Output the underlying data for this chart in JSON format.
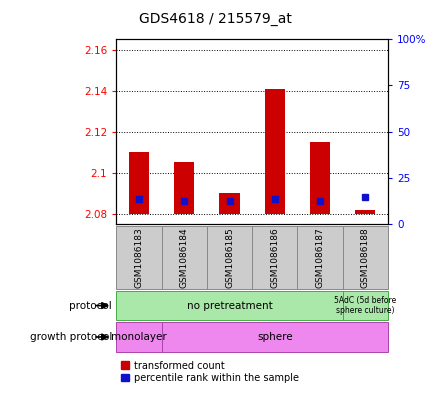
{
  "title": "GDS4618 / 215579_at",
  "samples": [
    "GSM1086183",
    "GSM1086184",
    "GSM1086185",
    "GSM1086186",
    "GSM1086187",
    "GSM1086188"
  ],
  "baseline": 2.08,
  "red_tops": [
    2.11,
    2.105,
    2.09,
    2.141,
    2.115,
    2.082
  ],
  "blue_y": [
    2.087,
    2.086,
    2.086,
    2.087,
    2.086,
    2.088
  ],
  "ylim_left": [
    2.075,
    2.165
  ],
  "ylim_right": [
    0,
    100
  ],
  "yticks_left": [
    2.08,
    2.1,
    2.12,
    2.14,
    2.16
  ],
  "ytick_labels_left": [
    "2.08",
    "2.1",
    "2.12",
    "2.14",
    "2.16"
  ],
  "yticks_right": [
    0,
    25,
    50,
    75,
    100
  ],
  "ytick_labels_right": [
    "0",
    "25",
    "50",
    "75",
    "100%"
  ],
  "bar_color": "#cc0000",
  "blue_color": "#1111cc",
  "bar_width": 0.45,
  "title_fontsize": 10,
  "prot_no_label": "no pretreatment",
  "prot_5adc_label": "5AdC (5d before\nsphere culture)",
  "growth_mono_label": "monolayer",
  "growth_sphere_label": "sphere",
  "protocol_label": "protocol",
  "growth_label": "growth protocol",
  "legend_red": "transformed count",
  "legend_blue": "percentile rank within the sample",
  "green_color": "#aae8aa",
  "green_border": "#44aa44",
  "magenta_color": "#ee88ee",
  "magenta_border": "#aa44aa",
  "gray_color": "#cccccc",
  "gray_border": "#888888",
  "background_color": "#ffffff"
}
